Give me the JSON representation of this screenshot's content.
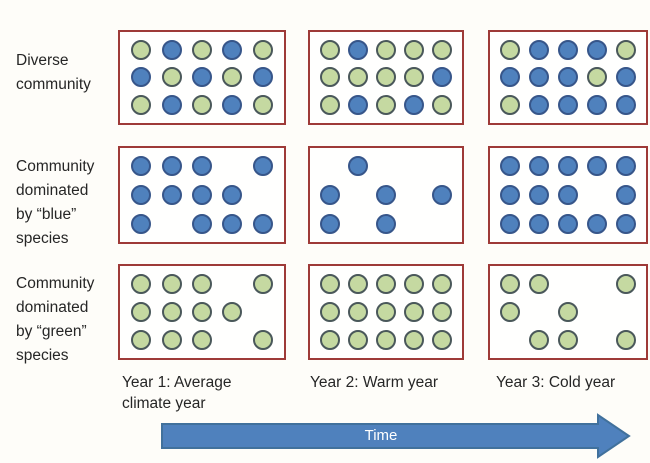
{
  "palette": {
    "background": "#fefdf9",
    "text": "#262626",
    "box_border": "#9e3a38",
    "blue_fill": "#4f81bd",
    "blue_border": "#37568a",
    "green_fill": "#c5d9a1",
    "green_border": "#4a585a",
    "arrow_fill": "#4f81bd",
    "arrow_border": "#41719c",
    "arrow_text": "#ffffff"
  },
  "rows": [
    {
      "label": "Diverse\ncommunity"
    },
    {
      "label": "Community\ndominated\nby “blue”\nspecies"
    },
    {
      "label": "Community\ndominated\nby “green”\nspecies"
    }
  ],
  "columns": [
    {
      "label": "Year 1: Average\nclimate year"
    },
    {
      "label": "Year 2: Warm year"
    },
    {
      "label": "Year 3: Cold year"
    }
  ],
  "time_arrow": {
    "label": "Time"
  },
  "dot_legend": {
    "b": "blue species individual",
    "g": "green species individual",
    ".": "empty slot"
  },
  "boxes": [
    {
      "row": 0,
      "col": 0,
      "pattern": [
        "gbgbg",
        "bgbgb",
        "gbgbg"
      ]
    },
    {
      "row": 0,
      "col": 1,
      "pattern": [
        "gbggg",
        "ggggb",
        "gbgbg"
      ]
    },
    {
      "row": 0,
      "col": 2,
      "pattern": [
        "gbbbg",
        "bbbgb",
        "gbbbb"
      ]
    },
    {
      "row": 1,
      "col": 0,
      "pattern": [
        "bbb.b",
        "bbbb.",
        "b.bbb"
      ]
    },
    {
      "row": 1,
      "col": 1,
      "pattern": [
        ".b...",
        "b.b.b",
        "b.b.."
      ]
    },
    {
      "row": 1,
      "col": 2,
      "pattern": [
        "bbbbb",
        "bbb.b",
        "bbbbb"
      ]
    },
    {
      "row": 2,
      "col": 0,
      "pattern": [
        "ggg.g",
        "gggg.",
        "ggg.g"
      ]
    },
    {
      "row": 2,
      "col": 1,
      "pattern": [
        "ggggg",
        "ggggg",
        "ggggg"
      ]
    },
    {
      "row": 2,
      "col": 2,
      "pattern": [
        "gg..g",
        "g.g..",
        ".gg.g"
      ]
    }
  ]
}
